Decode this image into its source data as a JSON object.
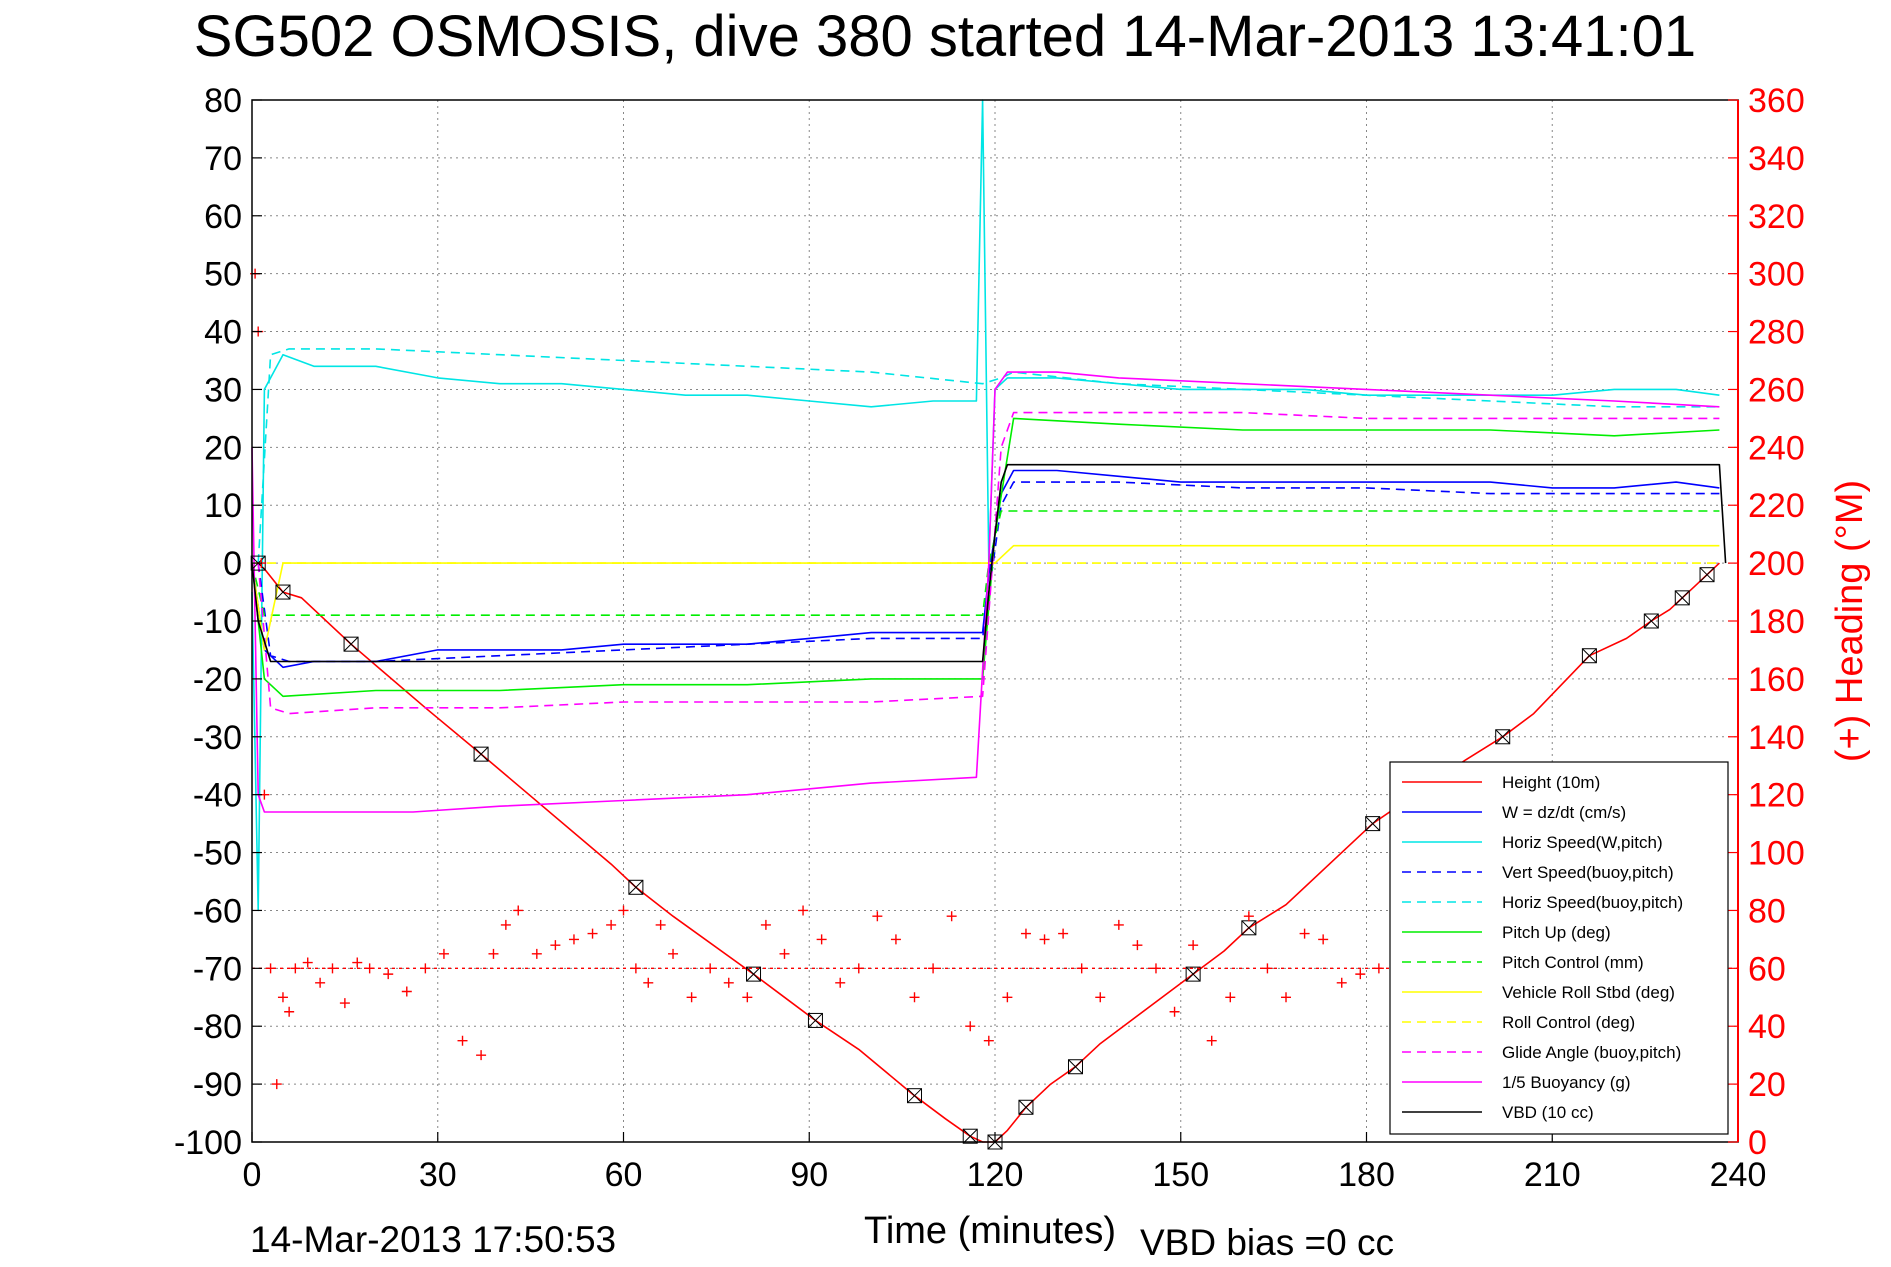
{
  "chart_data": {
    "type": "line",
    "title": "SG502 OSMOSIS, dive 380 started 14-Mar-2013 13:41:01",
    "xlabel": "Time (minutes)",
    "ylabel_right": "(+) Heading (°M)",
    "xlim": [
      0,
      240
    ],
    "ylim": [
      -100,
      80
    ],
    "ylim_right": [
      0,
      360
    ],
    "x_ticks": [
      "0",
      "30",
      "60",
      "90",
      "120",
      "150",
      "180",
      "210",
      "240"
    ],
    "y_ticks": [
      "80",
      "70",
      "60",
      "50",
      "40",
      "30",
      "20",
      "10",
      "0",
      "-10",
      "-20",
      "-30",
      "-40",
      "-50",
      "-60",
      "-70",
      "-80",
      "-90",
      "-100"
    ],
    "y_ticks_right": [
      "360",
      "340",
      "320",
      "300",
      "280",
      "260",
      "240",
      "220",
      "200",
      "180",
      "160",
      "140",
      "120",
      "100",
      "80",
      "60",
      "40",
      "20",
      "0"
    ],
    "grid": true,
    "legend_position": "bottom-right",
    "footer_left": "14-Mar-2013 17:50:53",
    "footer_right": "VBD bias =0 cc",
    "series": [
      {
        "name": "Height (10m)",
        "color": "#ff0000",
        "style": "solid",
        "x": [
          1,
          2,
          5,
          8,
          16,
          28,
          37,
          58,
          62,
          68,
          81,
          86,
          91,
          98,
          107,
          112,
          116,
          118,
          120,
          122,
          125,
          129,
          133,
          137,
          152,
          157,
          161,
          167,
          181,
          196,
          202,
          207,
          216,
          222,
          226,
          229,
          231,
          233,
          235,
          237
        ],
        "values": [
          0,
          -1,
          -5,
          -6,
          -14,
          -25,
          -33,
          -52,
          -56,
          -61,
          -71,
          -75,
          -79,
          -84,
          -92,
          -96,
          -99,
          -100,
          -100,
          -98,
          -94,
          -90,
          -87,
          -83,
          -71,
          -67,
          -63,
          -59,
          -45,
          -34,
          -30,
          -26,
          -16,
          -13,
          -10,
          -8,
          -6,
          -4,
          -2,
          0
        ]
      },
      {
        "name": "W = dz/dt (cm/s)",
        "color": "#0000ff",
        "style": "solid",
        "x": [
          0,
          2,
          5,
          10,
          20,
          30,
          40,
          50,
          60,
          70,
          80,
          90,
          100,
          110,
          118,
          119,
          121,
          123,
          130,
          140,
          150,
          160,
          170,
          180,
          190,
          200,
          210,
          220,
          230,
          237
        ],
        "values": [
          0,
          -15,
          -18,
          -17,
          -17,
          -15,
          -15,
          -15,
          -14,
          -14,
          -14,
          -13,
          -12,
          -12,
          -12,
          -2,
          12,
          16,
          16,
          15,
          14,
          14,
          14,
          14,
          14,
          14,
          13,
          13,
          14,
          13
        ]
      },
      {
        "name": "Horiz Speed(W,pitch)",
        "color": "#00e5e5",
        "style": "solid",
        "x": [
          0,
          1,
          2,
          5,
          10,
          20,
          30,
          40,
          50,
          60,
          70,
          80,
          90,
          100,
          110,
          117,
          118,
          119,
          120,
          122,
          124,
          130,
          140,
          150,
          160,
          170,
          180,
          190,
          200,
          210,
          220,
          230,
          237
        ],
        "values": [
          -5,
          -60,
          30,
          36,
          34,
          34,
          32,
          31,
          31,
          30,
          29,
          29,
          28,
          27,
          28,
          28,
          80,
          0,
          30,
          32,
          32,
          32,
          31,
          30,
          30,
          30,
          29,
          29,
          29,
          29,
          30,
          30,
          29
        ]
      },
      {
        "name": "Vert Speed(buoy,pitch)",
        "color": "#0000ff",
        "style": "dashed",
        "x": [
          1,
          3,
          6,
          20,
          40,
          60,
          80,
          100,
          118,
          121,
          123,
          140,
          160,
          180,
          200,
          220,
          237
        ],
        "values": [
          0,
          -16,
          -17,
          -17,
          -16,
          -15,
          -14,
          -13,
          -13,
          10,
          14,
          14,
          13,
          13,
          12,
          12,
          12
        ]
      },
      {
        "name": "Horiz Speed(buoy,pitch)",
        "color": "#00e5e5",
        "style": "dashed",
        "x": [
          1,
          3,
          6,
          20,
          40,
          60,
          80,
          100,
          118,
          121,
          123,
          140,
          160,
          180,
          200,
          220,
          237
        ],
        "values": [
          0,
          36,
          37,
          37,
          36,
          35,
          34,
          33,
          31,
          32,
          33,
          31,
          30,
          29,
          28,
          27,
          27
        ]
      },
      {
        "name": "Pitch Up (deg)",
        "color": "#00ee00",
        "style": "solid",
        "x": [
          0,
          2,
          5,
          20,
          40,
          60,
          80,
          100,
          118,
          120,
          123,
          140,
          160,
          180,
          200,
          220,
          237
        ],
        "values": [
          0,
          -20,
          -23,
          -22,
          -22,
          -21,
          -21,
          -20,
          -20,
          5,
          25,
          24,
          23,
          23,
          23,
          22,
          23
        ]
      },
      {
        "name": "Pitch Control (mm)",
        "color": "#00ee00",
        "style": "dashed",
        "x": [
          0,
          2,
          4,
          118,
          119,
          121,
          237
        ],
        "values": [
          0,
          -9,
          -9,
          -9,
          0,
          9,
          9
        ]
      },
      {
        "name": "Vehicle Roll Stbd (deg)",
        "color": "#ffff00",
        "style": "solid",
        "x": [
          0,
          2,
          5,
          10,
          30,
          58,
          60,
          80,
          100,
          118,
          120,
          123,
          140,
          160,
          180,
          200,
          220,
          237
        ],
        "values": [
          0,
          -15,
          0,
          0,
          0,
          0,
          0,
          0,
          0,
          0,
          0,
          3,
          3,
          3,
          3,
          3,
          3,
          3
        ]
      },
      {
        "name": "Roll Control (deg)",
        "color": "#ffff00",
        "style": "dashed",
        "x": [
          0,
          237
        ],
        "values": [
          0,
          0
        ]
      },
      {
        "name": "Glide Angle (buoy,pitch)",
        "color": "#ff00ff",
        "style": "dashed",
        "x": [
          1,
          3,
          6,
          20,
          40,
          60,
          80,
          100,
          118,
          121,
          123,
          140,
          160,
          180,
          200,
          220,
          237
        ],
        "values": [
          0,
          -25,
          -26,
          -25,
          -25,
          -24,
          -24,
          -24,
          -23,
          20,
          26,
          26,
          26,
          25,
          25,
          25,
          25
        ]
      },
      {
        "name": "1/5 Buoyancy (g)",
        "color": "#ff00ff",
        "style": "solid",
        "x": [
          0,
          1,
          2,
          26,
          40,
          60,
          80,
          100,
          117,
          119,
          120,
          122,
          130,
          140,
          160,
          180,
          200,
          220,
          237
        ],
        "values": [
          20,
          -40,
          -43,
          -43,
          -42,
          -41,
          -40,
          -38,
          -37,
          0,
          30,
          33,
          33,
          32,
          31,
          30,
          29,
          28,
          27
        ]
      },
      {
        "name": "VBD (10 cc)",
        "color": "#000000",
        "style": "solid",
        "x": [
          0,
          1,
          3,
          8,
          20,
          40,
          60,
          80,
          100,
          117,
          118,
          119,
          120,
          121,
          122,
          140,
          237,
          238
        ],
        "values": [
          0,
          -10,
          -17,
          -17,
          -17,
          -17,
          -17,
          -17,
          -17,
          -17,
          -17,
          -5,
          5,
          14,
          17,
          17,
          17,
          0
        ]
      }
    ],
    "heading_series": {
      "name": "(+) Heading",
      "color": "#ff0000",
      "marker": "+",
      "axis": "right",
      "x": [
        0.5,
        1,
        1.5,
        2,
        3,
        4,
        5,
        6,
        7,
        9,
        11,
        13,
        15,
        17,
        19,
        22,
        25,
        28,
        31,
        34,
        37,
        39,
        41,
        43,
        46,
        49,
        52,
        55,
        58,
        60,
        62,
        64,
        66,
        68,
        71,
        74,
        77,
        80,
        83,
        86,
        89,
        92,
        95,
        98,
        101,
        104,
        107,
        110,
        113,
        116,
        119,
        122,
        125,
        128,
        131,
        134,
        137,
        140,
        143,
        146,
        149,
        152,
        155,
        158,
        161,
        164,
        167,
        170,
        173,
        176,
        179,
        182,
        185,
        188
      ],
      "values": [
        300,
        280,
        200,
        120,
        60,
        20,
        50,
        45,
        60,
        62,
        55,
        60,
        48,
        62,
        60,
        58,
        52,
        60,
        65,
        35,
        30,
        65,
        75,
        80,
        65,
        68,
        70,
        72,
        75,
        80,
        60,
        55,
        75,
        65,
        50,
        60,
        55,
        50,
        75,
        65,
        80,
        70,
        55,
        60,
        78,
        70,
        50,
        60,
        78,
        40,
        35,
        50,
        72,
        70,
        72,
        60,
        50,
        75,
        68,
        60,
        45,
        68,
        35,
        50,
        78,
        60,
        50,
        72,
        70,
        55,
        58,
        60,
        65,
        65
      ]
    },
    "reference_line_right": {
      "value": 60,
      "color": "#ff0000",
      "style": "dotted"
    }
  },
  "legend": [
    "Height (10m)",
    "W = dz/dt (cm/s)",
    "Horiz Speed(W,pitch)",
    "Vert Speed(buoy,pitch)",
    "Horiz Speed(buoy,pitch)",
    "Pitch Up (deg)",
    "Pitch Control (mm)",
    "Vehicle Roll Stbd (deg)",
    "Roll Control (deg)",
    "Glide Angle (buoy,pitch)",
    "1/5 Buoyancy (g)",
    "VBD (10 cc)"
  ],
  "colors": {
    "axis": "#000000",
    "right_axis": "#ff0000",
    "grid": "#888888",
    "background": "#ffffff"
  }
}
